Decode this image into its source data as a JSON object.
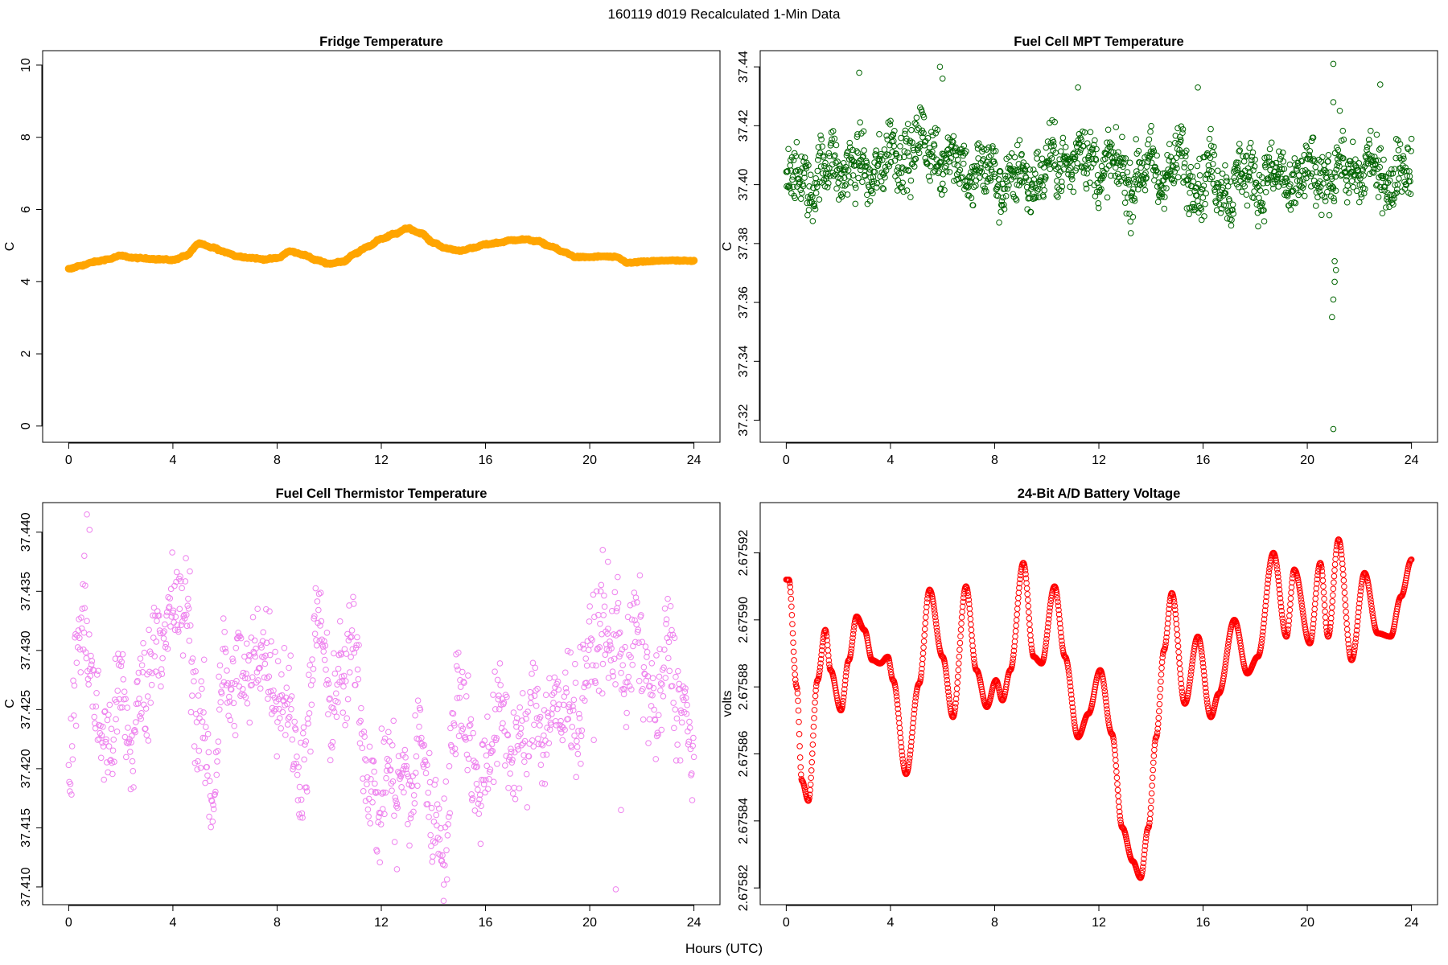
{
  "figure": {
    "title": "160119   d019   Recalculated 1-Min Data",
    "shared_xlabel": "Hours (UTC)"
  },
  "chart_data": [
    {
      "type": "line",
      "title": "Fridge Temperature",
      "xlabel": "Hours (UTC)",
      "ylabel": "C",
      "xlim": [
        -1,
        25
      ],
      "ylim": [
        -0.45,
        10.4
      ],
      "xticks": [
        0,
        4,
        8,
        12,
        16,
        20,
        24
      ],
      "yticks": [
        0,
        2,
        4,
        6,
        8,
        10
      ],
      "color": "#ffa500",
      "marker": "thick-points",
      "x": [
        0,
        0.5,
        1,
        1.5,
        2,
        2.5,
        3,
        3.5,
        4,
        4.5,
        5,
        5.5,
        6,
        6.5,
        7,
        7.5,
        8,
        8.5,
        9,
        9.5,
        10,
        10.5,
        11,
        11.5,
        12,
        12.5,
        13,
        13.5,
        14,
        14.5,
        15,
        15.5,
        16,
        16.5,
        17,
        17.5,
        18,
        18.5,
        19,
        19.5,
        20,
        20.5,
        21,
        21.5,
        22,
        22.5,
        23,
        23.5,
        24
      ],
      "y": [
        4.35,
        4.45,
        4.55,
        4.62,
        4.72,
        4.66,
        4.64,
        4.62,
        4.6,
        4.72,
        5.05,
        4.95,
        4.82,
        4.7,
        4.66,
        4.62,
        4.65,
        4.84,
        4.75,
        4.6,
        4.5,
        4.55,
        4.78,
        4.98,
        5.18,
        5.32,
        5.48,
        5.35,
        5.08,
        4.92,
        4.86,
        4.93,
        5.03,
        5.08,
        5.15,
        5.17,
        5.12,
        4.98,
        4.82,
        4.68,
        4.68,
        4.7,
        4.68,
        4.52,
        4.55,
        4.57,
        4.59,
        4.58,
        4.57
      ]
    },
    {
      "type": "scatter",
      "title": "Fuel Cell MPT Temperature",
      "xlabel": "Hours (UTC)",
      "ylabel": "C",
      "xlim": [
        -1,
        25
      ],
      "ylim": [
        37.3125,
        37.4455
      ],
      "xticks": [
        0,
        4,
        8,
        12,
        16,
        20,
        24
      ],
      "yticks": [
        37.32,
        37.34,
        37.36,
        37.38,
        37.4,
        37.42,
        37.44
      ],
      "color": "#006400",
      "marker": "open-circle",
      "n_points": 1440,
      "center": [
        37.401,
        37.402,
        37.407,
        37.404,
        37.409,
        37.413,
        37.41,
        37.405,
        37.403,
        37.401,
        37.405,
        37.41,
        37.407,
        37.403,
        37.404,
        37.406,
        37.402,
        37.4,
        37.403,
        37.401,
        37.402,
        37.404,
        37.405,
        37.403,
        37.404
      ],
      "spread": 0.009,
      "outliers": [
        {
          "x": 2.8,
          "y": 37.438
        },
        {
          "x": 5.9,
          "y": 37.44
        },
        {
          "x": 6.0,
          "y": 37.436
        },
        {
          "x": 11.2,
          "y": 37.433
        },
        {
          "x": 15.8,
          "y": 37.433
        },
        {
          "x": 21.0,
          "y": 37.441
        },
        {
          "x": 21.0,
          "y": 37.428
        },
        {
          "x": 21.05,
          "y": 37.374
        },
        {
          "x": 21.1,
          "y": 37.371
        },
        {
          "x": 21.05,
          "y": 37.367
        },
        {
          "x": 21.0,
          "y": 37.361
        },
        {
          "x": 20.95,
          "y": 37.355
        },
        {
          "x": 21.0,
          "y": 37.317
        },
        {
          "x": 22.8,
          "y": 37.434
        }
      ]
    },
    {
      "type": "scatter",
      "title": "Fuel Cell Thermistor Temperature",
      "xlabel": "Hours (UTC)",
      "ylabel": "C",
      "xlim": [
        -1,
        25
      ],
      "ylim": [
        37.4085,
        37.4425
      ],
      "xticks": [
        0,
        4,
        8,
        12,
        16,
        20,
        24
      ],
      "yticks": [
        37.41,
        37.415,
        37.42,
        37.425,
        37.43,
        37.435,
        37.44
      ],
      "color": "#ee82ee",
      "marker": "open-circle",
      "n_points": 1100,
      "center_x": [
        0,
        0.5,
        1,
        1.5,
        2,
        2.5,
        3,
        3.5,
        4,
        4.5,
        5,
        5.5,
        6,
        6.5,
        7,
        7.5,
        8,
        8.5,
        9,
        9.5,
        10,
        10.5,
        11,
        11.5,
        12,
        12.5,
        13,
        13.5,
        14,
        14.5,
        15,
        15.5,
        16,
        16.5,
        17,
        17.5,
        18,
        18.5,
        19,
        19.5,
        20,
        20.5,
        21,
        21.5,
        22,
        22.5,
        23,
        23.5,
        24
      ],
      "center": [
        37.418,
        37.432,
        37.428,
        37.42,
        37.426,
        37.424,
        37.426,
        37.433,
        37.433,
        37.432,
        37.426,
        37.417,
        37.428,
        37.429,
        37.426,
        37.432,
        37.427,
        37.423,
        37.421,
        37.431,
        37.426,
        37.429,
        37.428,
        37.42,
        37.418,
        37.418,
        37.42,
        37.421,
        37.415,
        37.417,
        37.426,
        37.421,
        37.42,
        37.423,
        37.424,
        37.421,
        37.424,
        37.426,
        37.423,
        37.426,
        37.43,
        37.429,
        37.433,
        37.428,
        37.43,
        37.426,
        37.428,
        37.426,
        37.423
      ],
      "spread": 0.0042,
      "outliers": [
        {
          "x": 0.7,
          "y": 37.4415
        },
        {
          "x": 0.8,
          "y": 37.4402
        },
        {
          "x": 0.6,
          "y": 37.438
        },
        {
          "x": 20.5,
          "y": 37.4385
        },
        {
          "x": 20.7,
          "y": 37.4375
        },
        {
          "x": 21.0,
          "y": 37.4098
        },
        {
          "x": 21.2,
          "y": 37.4165
        },
        {
          "x": 14.4,
          "y": 37.4102
        },
        {
          "x": 12.6,
          "y": 37.4115
        }
      ]
    },
    {
      "type": "scatter",
      "title": "24-Bit A/D Battery Voltage",
      "xlabel": "Hours (UTC)",
      "ylabel": "volts",
      "xlim": [
        -1,
        25
      ],
      "ylim": [
        2.675815,
        2.675935
      ],
      "xticks": [
        0,
        4,
        8,
        12,
        16,
        20,
        24
      ],
      "yticks": [
        2.67582,
        2.67584,
        2.67586,
        2.67588,
        2.6759,
        2.67592
      ],
      "ytick_labels": [
        "2.67582",
        "2.67584",
        "2.67586",
        "2.67588",
        "2.67590",
        "2.67592"
      ],
      "color": "#ff0000",
      "marker": "open-circle",
      "n_points": 1440,
      "x": [
        0,
        0.1,
        0.4,
        0.6,
        0.85,
        1.2,
        1.5,
        1.7,
        2.1,
        2.4,
        2.7,
        3.0,
        3.3,
        3.6,
        3.9,
        4.1,
        4.6,
        5.1,
        5.5,
        6.0,
        6.4,
        6.9,
        7.3,
        7.7,
        8.05,
        8.3,
        8.6,
        9.1,
        9.5,
        9.8,
        10.3,
        10.7,
        11.2,
        11.6,
        12.05,
        12.5,
        12.9,
        13.3,
        13.6,
        13.9,
        14.2,
        14.5,
        14.8,
        15.3,
        15.8,
        16.3,
        16.6,
        17.2,
        17.7,
        18.1,
        18.7,
        19.2,
        19.5,
        20.1,
        20.5,
        20.8,
        21.2,
        21.7,
        22.2,
        22.7,
        23.2,
        23.6,
        24
      ],
      "y": [
        2.675912,
        2.675912,
        2.67588,
        2.675852,
        2.675846,
        2.675882,
        2.675897,
        2.675885,
        2.675873,
        2.675888,
        2.675901,
        2.675897,
        2.675888,
        2.675887,
        2.675889,
        2.675882,
        2.675854,
        2.675881,
        2.675909,
        2.675889,
        2.675871,
        2.67591,
        2.675885,
        2.675874,
        2.675882,
        2.675876,
        2.675885,
        2.675917,
        2.675889,
        2.675887,
        2.67591,
        2.675889,
        2.675865,
        2.675872,
        2.675885,
        2.675866,
        2.675838,
        2.675828,
        2.675823,
        2.675838,
        2.675865,
        2.675891,
        2.675908,
        2.675875,
        2.675895,
        2.675871,
        2.675878,
        2.6759,
        2.675884,
        2.675889,
        2.67592,
        2.675895,
        2.675915,
        2.675893,
        2.675917,
        2.675895,
        2.675924,
        2.675888,
        2.675914,
        2.675896,
        2.675895,
        2.675907,
        2.675918
      ]
    }
  ]
}
